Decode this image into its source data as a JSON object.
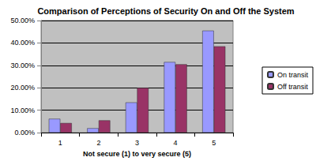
{
  "chart_data": {
    "type": "bar",
    "title": "Comparison of Perceptions of Security On and Off the System",
    "x_label": "Not secure (1) to very secure (5)",
    "categories": [
      "1",
      "2",
      "3",
      "4",
      "5"
    ],
    "series": [
      {
        "name": "On transit",
        "color": "#9999ff",
        "values": [
          6.2,
          2.0,
          13.5,
          31.5,
          45.5
        ]
      },
      {
        "name": "Off transit",
        "color": "#993366",
        "values": [
          4.3,
          5.5,
          20.0,
          30.5,
          38.5
        ]
      }
    ],
    "ylim": [
      0,
      50
    ],
    "yticks": [
      {
        "value": 0,
        "label": "0.00%"
      },
      {
        "value": 10,
        "label": "10.00%"
      },
      {
        "value": 20,
        "label": "20.00%"
      },
      {
        "value": 30,
        "label": "30.00%"
      },
      {
        "value": 40,
        "label": "40.00%"
      },
      {
        "value": 50,
        "label": "50.00%"
      }
    ],
    "grid": true,
    "legend": "right"
  }
}
